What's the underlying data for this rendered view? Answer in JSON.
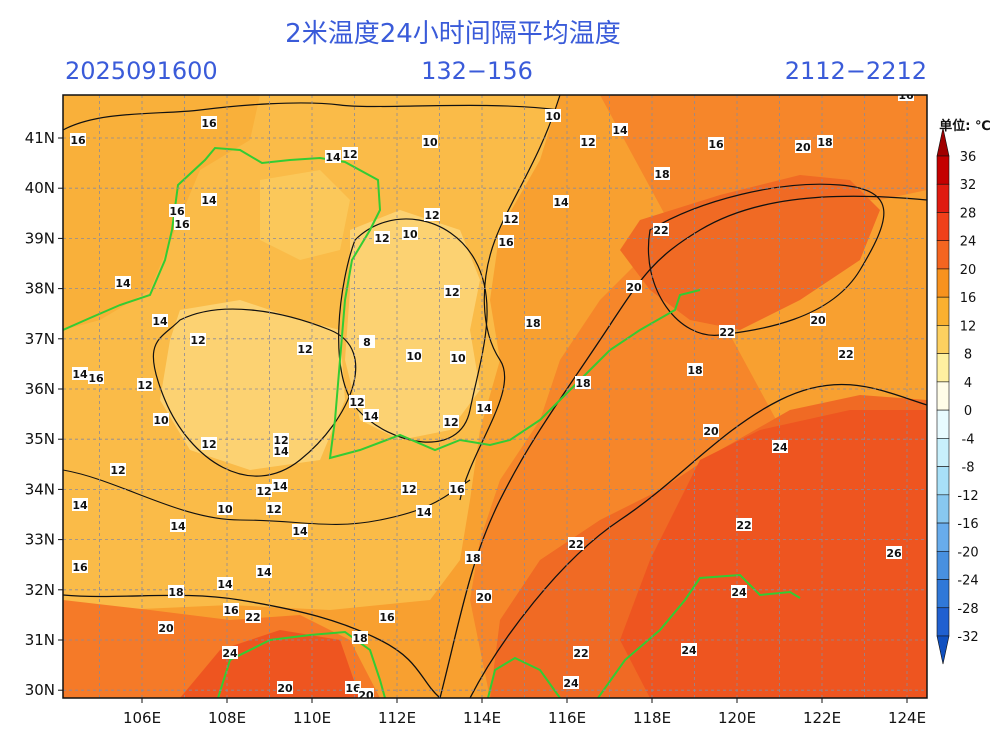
{
  "header": {
    "title": "2米温度24小时间隔平均温度",
    "init_time": "2025091600",
    "forecast_hours": "132−156",
    "valid_time": "2112−2212"
  },
  "map": {
    "lat_ticks": [
      "41N",
      "40N",
      "39N",
      "38N",
      "37N",
      "36N",
      "35N",
      "34N",
      "33N",
      "32N",
      "31N",
      "30N"
    ],
    "lon_ticks": [
      "106E",
      "108E",
      "110E",
      "112E",
      "114E",
      "116E",
      "118E",
      "120E",
      "122E",
      "124E"
    ],
    "contour_labels": [
      "16",
      "16",
      "10",
      "14",
      "10",
      "14",
      "12",
      "12",
      "16",
      "20",
      "18",
      "14",
      "16",
      "16",
      "12",
      "12",
      "14",
      "10",
      "12",
      "16",
      "22",
      "14",
      "12",
      "20",
      "14",
      "18",
      "22",
      "20",
      "12",
      "8",
      "12",
      "10",
      "10",
      "22",
      "14",
      "16",
      "12",
      "18",
      "18",
      "12",
      "14",
      "14",
      "10",
      "12",
      "20",
      "12",
      "12",
      "14",
      "24",
      "12",
      "12",
      "14",
      "12",
      "16",
      "14",
      "10",
      "12",
      "14",
      "14",
      "14",
      "22",
      "22",
      "26",
      "18",
      "16",
      "14",
      "14",
      "18",
      "20",
      "24",
      "16",
      "22",
      "16",
      "20",
      "18",
      "24",
      "22",
      "24",
      "20",
      "16",
      "20",
      "24",
      "16",
      "18"
    ]
  },
  "colorbar": {
    "title": "单位: ℃",
    "levels": [
      36,
      32,
      28,
      24,
      20,
      16,
      12,
      8,
      4,
      0,
      -4,
      -8,
      -12,
      -16,
      -20,
      -24,
      -28,
      -32
    ],
    "colors": [
      "#a00000",
      "#c40000",
      "#e01b10",
      "#f0401a",
      "#f56520",
      "#f8921e",
      "#fab030",
      "#fdd060",
      "#fff0a0",
      "#fffde8",
      "#e8fbff",
      "#c8f0fc",
      "#a8e0f8",
      "#88c8f0",
      "#68acec",
      "#4890e0",
      "#3078d8",
      "#2060d0",
      "#1050c0"
    ]
  }
}
